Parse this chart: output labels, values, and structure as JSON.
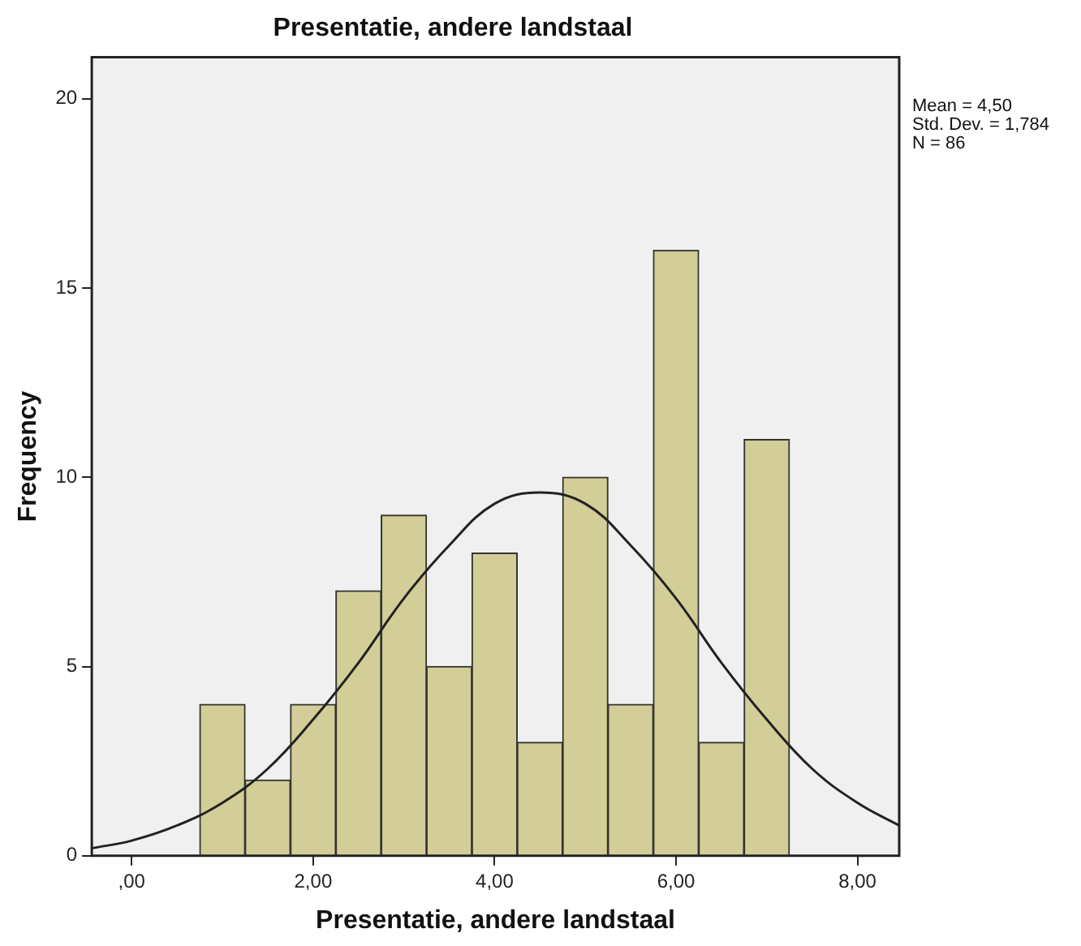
{
  "chart_data": {
    "type": "histogram",
    "title": "Presentatie, andere landstaal",
    "xlabel": "Presentatie, andere landstaal",
    "ylabel": "Frequency",
    "bins": [
      0.75,
      1.25,
      1.75,
      2.25,
      2.75,
      3.25,
      3.75,
      4.25,
      4.75,
      5.25,
      5.75,
      6.25,
      6.75,
      7.25
    ],
    "values": [
      4,
      2,
      4,
      7,
      9,
      5,
      8,
      3,
      10,
      4,
      16,
      3,
      11
    ],
    "color": "#d3ce97",
    "series": [
      {
        "type": "line",
        "color": "#222222",
        "x": [
          -0.44,
          0,
          0.5,
          1,
          1.5,
          2,
          2.5,
          3,
          3.5,
          4,
          4.5,
          5,
          5.5,
          6,
          6.5,
          7,
          7.5,
          8,
          8.46
        ],
        "values": [
          0.2,
          0.4,
          0.8,
          1.4,
          2.3,
          3.6,
          5.1,
          6.8,
          8.2,
          9.3,
          9.6,
          9.3,
          8.2,
          6.8,
          5.1,
          3.6,
          2.3,
          1.4,
          0.8
        ]
      }
    ],
    "xlim": [
      -0.44,
      8.46
    ],
    "xticks": [
      {
        "value": 0,
        "label": ",00"
      },
      {
        "value": 2,
        "label": "2,00"
      },
      {
        "value": 4,
        "label": "4,00"
      },
      {
        "value": 6,
        "label": "6,00"
      },
      {
        "value": 8,
        "label": "8,00"
      }
    ],
    "ylim": [
      0,
      21.1
    ],
    "yticks": [
      0,
      5,
      10,
      15,
      20
    ],
    "grid": false,
    "legend": false,
    "marker": "none",
    "line_style": "solid",
    "annotations": [
      "Mean = 4,50",
      "Std. Dev. = 1,784",
      "N = 86"
    ]
  }
}
